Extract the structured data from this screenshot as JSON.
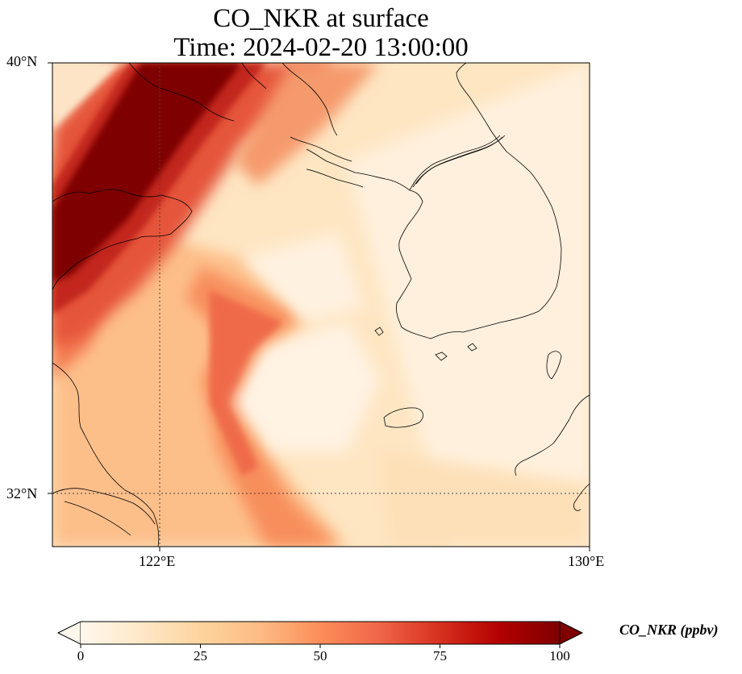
{
  "title": {
    "line1": "CO_NKR at surface",
    "line2": "Time: 2024-02-20 13:00:00"
  },
  "axes": {
    "lat_labels": [
      "40°N",
      "32°N"
    ],
    "lon_labels": [
      "122°E",
      "130°E"
    ]
  },
  "colorbar": {
    "label": "CO_NKR (ppbv)",
    "ticks": [
      "0",
      "25",
      "50",
      "75",
      "100"
    ],
    "colormap": "OrRd",
    "range": [
      0,
      100
    ],
    "extend": "both"
  },
  "colors": {
    "low": "#fff7ec",
    "mid": "#fc8d59",
    "high": "#7f0000"
  }
}
